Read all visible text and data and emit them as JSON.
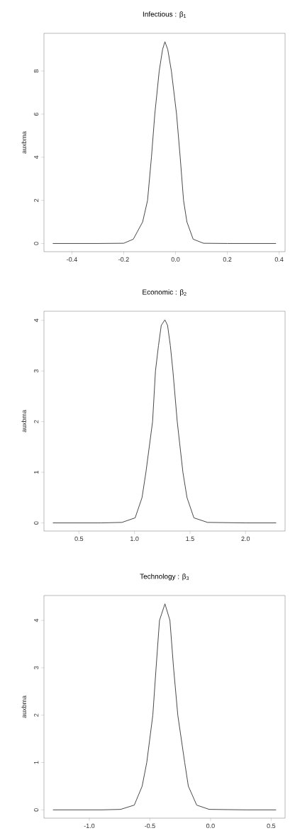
{
  "chart_data": [
    {
      "type": "line",
      "title": "Infectious : β$_{1}$",
      "ylabel": "auxbma",
      "color": "#333333",
      "x": [
        -0.474,
        -0.3,
        -0.2,
        -0.163,
        -0.127,
        -0.108,
        -0.093,
        -0.08,
        -0.063,
        -0.05,
        -0.041,
        -0.03,
        -0.016,
        0.004,
        0.018,
        0.031,
        0.044,
        0.068,
        0.108,
        0.2,
        0.388
      ],
      "values": [
        0,
        0,
        0.01,
        0.2,
        1,
        2,
        4,
        6,
        8,
        9,
        9.36,
        9,
        8,
        6,
        4,
        2,
        1,
        0.2,
        0.01,
        0,
        0
      ],
      "xlim": [
        -0.508,
        0.423
      ],
      "ylim": [
        -0.38,
        9.75
      ],
      "xticks": [
        -0.4,
        -0.2,
        {
          "value": 0,
          "label": "0.0"
        },
        0.2,
        0.4
      ],
      "yticks": [
        0,
        2,
        4,
        6,
        8
      ]
    },
    {
      "type": "line",
      "title": "Economic : β$_{2}$",
      "ylabel": "auxbma",
      "color": "#333333",
      "x": [
        0.265,
        0.7,
        0.887,
        1.006,
        1.068,
        1.103,
        1.163,
        1.189,
        1.216,
        1.241,
        1.274,
        1.298,
        1.323,
        1.346,
        1.385,
        1.436,
        1.473,
        1.535,
        1.658,
        2.0,
        2.276
      ],
      "values": [
        0,
        0,
        0.01,
        0.1,
        0.5,
        1,
        2,
        3,
        3.5,
        3.9,
        4.01,
        3.9,
        3.5,
        3,
        2,
        1,
        0.5,
        0.1,
        0.01,
        0,
        0
      ],
      "xlim": [
        0.185,
        2.356
      ],
      "ylim": [
        -0.16,
        4.18
      ],
      "xticks": [
        0.5,
        {
          "value": 1,
          "label": "1.0"
        },
        1.5,
        {
          "value": 2,
          "label": "2.0"
        }
      ],
      "yticks": [
        0,
        1,
        2,
        3,
        4
      ]
    },
    {
      "type": "line",
      "title": "Technology : β$_{3}$",
      "ylabel": "auxbma",
      "color": "#333333",
      "x": [
        -1.3,
        -0.9,
        -0.742,
        -0.629,
        -0.564,
        -0.526,
        -0.476,
        -0.449,
        -0.421,
        -0.376,
        -0.335,
        -0.305,
        -0.27,
        -0.213,
        -0.183,
        -0.114,
        -0.011,
        0.3,
        0.541
      ],
      "values": [
        0,
        0,
        0.01,
        0.1,
        0.5,
        1,
        2,
        3,
        4,
        4.35,
        4,
        3,
        2,
        1,
        0.5,
        0.1,
        0.01,
        0,
        0
      ],
      "xlim": [
        -1.374,
        0.615
      ],
      "ylim": [
        -0.175,
        4.525
      ],
      "xticks": [
        {
          "value": -1,
          "label": "-1.0"
        },
        -0.5,
        {
          "value": 0,
          "label": "0.0"
        },
        0.5
      ],
      "yticks": [
        0,
        1,
        2,
        3,
        4
      ]
    }
  ]
}
